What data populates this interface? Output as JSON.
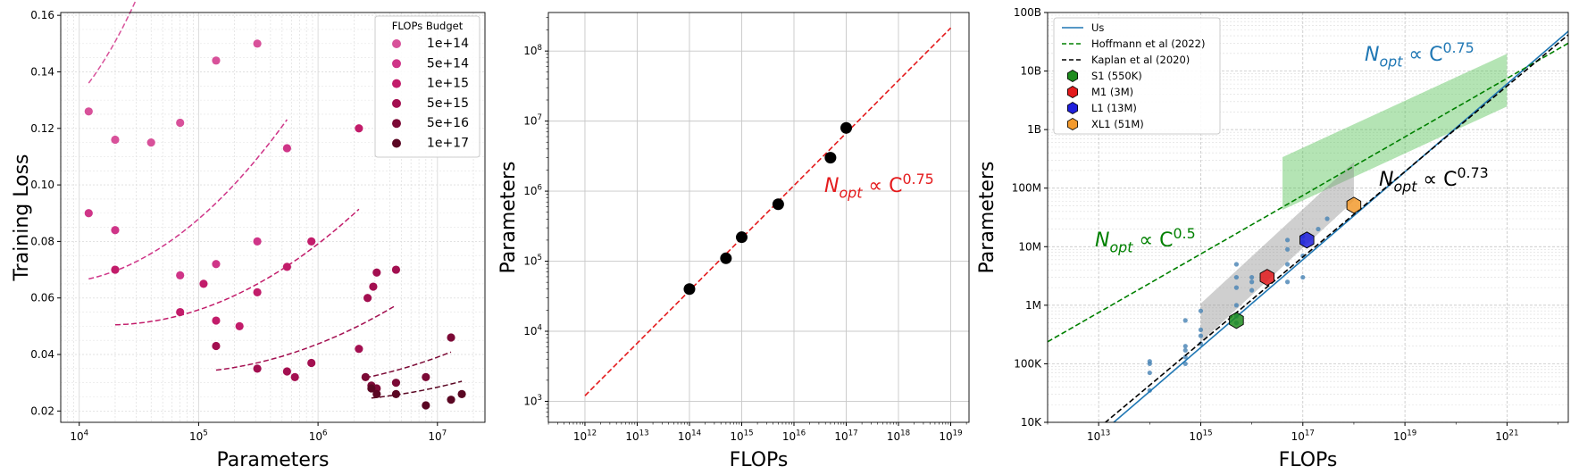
{
  "colors": {
    "budgets": [
      "#d8519a",
      "#cf3588",
      "#c21c6a",
      "#a30f50",
      "#7c0a36",
      "#5a0723"
    ],
    "red": "#e41a1c",
    "us": "#1f77b4",
    "hoffmann": "#008000",
    "kaplan": "#000000",
    "runs": "#4682b4"
  },
  "chart_data": [
    {
      "type": "scatter",
      "title": "",
      "xlabel": "Parameters",
      "ylabel": "Training Loss",
      "xscale": "log",
      "xlim": [
        7000,
        25000000
      ],
      "ylim": [
        0.016,
        0.161
      ],
      "xticks": [
        {
          "v": 10000,
          "label": "10",
          "sup": "4"
        },
        {
          "v": 100000,
          "label": "10",
          "sup": "5"
        },
        {
          "v": 1000000,
          "label": "10",
          "sup": "6"
        },
        {
          "v": 10000000,
          "label": "10",
          "sup": "7"
        }
      ],
      "yticks": [
        "0.02",
        "0.04",
        "0.06",
        "0.08",
        "0.10",
        "0.12",
        "0.14",
        "0.16"
      ],
      "grid": true,
      "legend": {
        "title": "FLOPs Budget",
        "placement": "top-right"
      },
      "series": [
        {
          "name": "1e+14",
          "points": [
            [
              12000,
              0.126
            ],
            [
              20000,
              0.116
            ],
            [
              40000,
              0.115
            ],
            [
              70000,
              0.122
            ],
            [
              140000,
              0.144
            ],
            [
              310000,
              0.15
            ]
          ],
          "fit_x": [
            12000,
            310000
          ],
          "fit_a": 0.118,
          "fit_b": 4.44,
          "fit_c": 0.0277
        },
        {
          "name": "5e+14",
          "points": [
            [
              12000,
              0.09
            ],
            [
              20000,
              0.084
            ],
            [
              70000,
              0.068
            ],
            [
              140000,
              0.072
            ],
            [
              310000,
              0.08
            ],
            [
              550000,
              0.113
            ]
          ],
          "fit_x": [
            12000,
            550000
          ],
          "fit_a": 0.0652,
          "fit_b": 1.47,
          "fit_c": 0.057
        },
        {
          "name": "1e+15",
          "points": [
            [
              20000,
              0.07
            ],
            [
              70000,
              0.055
            ],
            [
              110000,
              0.065
            ],
            [
              140000,
              0.052
            ],
            [
              220000,
              0.05
            ],
            [
              310000,
              0.062
            ],
            [
              550000,
              0.071
            ],
            [
              880000,
              0.08
            ],
            [
              2200000,
              0.12
            ]
          ],
          "fit_x": [
            20000,
            2200000
          ],
          "fit_a": 0.0505,
          "fit_b": 0.93,
          "fit_c": 0.176
        },
        {
          "name": "5e+15",
          "points": [
            [
              140000,
              0.043
            ],
            [
              310000,
              0.035
            ],
            [
              550000,
              0.034
            ],
            [
              640000,
              0.032
            ],
            [
              880000,
              0.037
            ],
            [
              2200000,
              0.042
            ],
            [
              2600000,
              0.06
            ],
            [
              2900000,
              0.064
            ],
            [
              3100000,
              0.069
            ],
            [
              4500000,
              0.07
            ]
          ],
          "fit_x": [
            140000,
            4500000
          ],
          "fit_a": 0.0335,
          "fit_b": 0.67,
          "fit_c": 0.58
        },
        {
          "name": "5e+16",
          "points": [
            [
              2500000,
              0.032
            ],
            [
              2800000,
              0.029
            ],
            [
              3100000,
              0.028
            ],
            [
              4500000,
              0.03
            ],
            [
              8000000,
              0.032
            ],
            [
              13000000,
              0.046
            ]
          ],
          "fit_x": [
            2500000,
            13000000
          ],
          "fit_a": 0.0283,
          "fit_b": 0.55,
          "fit_c": 4.0
        },
        {
          "name": "1e+17",
          "points": [
            [
              2800000,
              0.028
            ],
            [
              3100000,
              0.026
            ],
            [
              4500000,
              0.026
            ],
            [
              8000000,
              0.022
            ],
            [
              13000000,
              0.024
            ],
            [
              16000000,
              0.026
            ]
          ],
          "fit_x": [
            2800000,
            16000000
          ],
          "fit_a": 0.0235,
          "fit_b": 0.45,
          "fit_c": 9.0
        }
      ]
    },
    {
      "type": "scatter",
      "title": "",
      "xlabel": "FLOPs",
      "ylabel": "Parameters",
      "xscale": "log",
      "yscale": "log",
      "xlim_exp": [
        11.3,
        19.35
      ],
      "ylim_exp": [
        2.7,
        8.55
      ],
      "xticks": [
        {
          "label": "10",
          "sup": "12"
        },
        {
          "label": "10",
          "sup": "13"
        },
        {
          "label": "10",
          "sup": "14"
        },
        {
          "label": "10",
          "sup": "15"
        },
        {
          "label": "10",
          "sup": "16"
        },
        {
          "label": "10",
          "sup": "17"
        },
        {
          "label": "10",
          "sup": "18"
        },
        {
          "label": "10",
          "sup": "19"
        }
      ],
      "yticks": [
        {
          "label": "10",
          "sup": "3"
        },
        {
          "label": "10",
          "sup": "4"
        },
        {
          "label": "10",
          "sup": "5"
        },
        {
          "label": "10",
          "sup": "6"
        },
        {
          "label": "10",
          "sup": "7"
        },
        {
          "label": "10",
          "sup": "8"
        }
      ],
      "grid": true,
      "points": [
        [
          100000000000000.0,
          40000
        ],
        [
          500000000000000.0,
          110000
        ],
        [
          1000000000000000.0,
          220000
        ],
        [
          5000000000000000.0,
          650000
        ],
        [
          5e+16,
          3000000
        ],
        [
          1e+17,
          8000000
        ]
      ],
      "fit": {
        "exponent": 0.75,
        "x_range": [
          1000000000000.0,
          1e+19
        ],
        "y_at_1e12": 1200
      },
      "annotation": {
        "base": "N",
        "sub": "opt",
        "mid": " ∝ C",
        "sup": "0.75"
      }
    },
    {
      "type": "scatter",
      "title": "",
      "xlabel": "FLOPs",
      "ylabel": "Parameters",
      "xscale": "log",
      "yscale": "log",
      "xlim_exp": [
        12.0,
        22.2
      ],
      "ylim_exp": [
        4.0,
        11.0
      ],
      "xticks": [
        {
          "label": "10",
          "sup": "13"
        },
        {
          "label": "10",
          "sup": "15"
        },
        {
          "label": "10",
          "sup": "17"
        },
        {
          "label": "10",
          "sup": "19"
        },
        {
          "label": "10",
          "sup": "21"
        },
        {
          "label": "10",
          "sup": "2"
        }
      ],
      "yticks": [
        "10K",
        "100K",
        "1M",
        "10M",
        "100M",
        "1B",
        "10B",
        "100B"
      ],
      "grid": true,
      "legend": {
        "placement": "top-left",
        "lines": [
          {
            "name": "Us",
            "style": "solid",
            "color": "#1f77b4"
          },
          {
            "name": "Hoffmann et al (2022)",
            "style": "dashed",
            "color": "#008000"
          },
          {
            "name": "Kaplan et al (2020)",
            "style": "dashed",
            "color": "#000000"
          }
        ],
        "markers": [
          {
            "name": "S1 (550K)",
            "color": "#1e8c1e"
          },
          {
            "name": "M1 (3M)",
            "color": "#e31a1c"
          },
          {
            "name": "L1 (13M)",
            "color": "#1f1fdc"
          },
          {
            "name": "XL1 (51M)",
            "color": "#f29a2e"
          }
        ]
      },
      "models": [
        {
          "name": "S1",
          "flops": 5000000000000000.0,
          "params": 550000,
          "color": "#1e8c1e"
        },
        {
          "name": "M1",
          "flops": 2e+16,
          "params": 3000000,
          "color": "#e31a1c"
        },
        {
          "name": "L1",
          "flops": 1.2e+17,
          "params": 13000000,
          "color": "#1f1fdc"
        },
        {
          "name": "XL1",
          "flops": 1e+18,
          "params": 51000000,
          "color": "#f29a2e"
        }
      ],
      "runs": [
        [
          100000000000000.0,
          35000
        ],
        [
          100000000000000.0,
          70000
        ],
        [
          100000000000000.0,
          100000
        ],
        [
          100000000000000.0,
          110000
        ],
        [
          500000000000000.0,
          100000
        ],
        [
          500000000000000.0,
          130000
        ],
        [
          500000000000000.0,
          170000
        ],
        [
          500000000000000.0,
          200000
        ],
        [
          500000000000000.0,
          550000
        ],
        [
          1000000000000000.0,
          220000
        ],
        [
          1000000000000000.0,
          300000
        ],
        [
          1000000000000000.0,
          380000
        ],
        [
          1000000000000000.0,
          800000
        ],
        [
          5000000000000000.0,
          500000
        ],
        [
          5000000000000000.0,
          650000
        ],
        [
          5000000000000000.0,
          1000000
        ],
        [
          5000000000000000.0,
          2000000
        ],
        [
          5000000000000000.0,
          3000000
        ],
        [
          5000000000000000.0,
          5000000
        ],
        [
          1e+16,
          1800000
        ],
        [
          1e+16,
          2500000
        ],
        [
          1e+16,
          3000000
        ],
        [
          5e+16,
          2500000
        ],
        [
          5e+16,
          5000000
        ],
        [
          5e+16,
          9000000
        ],
        [
          5e+16,
          13000000
        ],
        [
          1e+17,
          3000000
        ],
        [
          1e+17,
          7000000
        ],
        [
          1e+17,
          12000000
        ],
        [
          1e+17,
          15000000
        ],
        [
          2e+17,
          20000000
        ],
        [
          3e+17,
          30000000
        ]
      ],
      "fits": [
        {
          "name": "Us",
          "exponent": 0.75,
          "anchor": [
            10000000000000.0,
            6000
          ],
          "range": [
            10000000000000.0,
            1.6e+22
          ]
        },
        {
          "name": "Hoffmann et al (2022)",
          "exponent": 0.5,
          "anchor": [
            10000000000000.0,
            750000
          ],
          "range": [
            1000000000000.0,
            1.6e+22
          ]
        },
        {
          "name": "Kaplan et al (2020)",
          "exponent": 0.73,
          "anchor": [
            10000000000000.0,
            8000
          ],
          "range": [
            10000000000000.0,
            1.6e+22
          ]
        }
      ],
      "bands": [
        {
          "name": "green",
          "from": [
            4e+16,
            120000000
          ],
          "to": [
            1e+21,
            7000000000
          ],
          "halfwidth_dex": 0.45
        },
        {
          "name": "gray",
          "from": [
            1000000000000000.0,
            500000
          ],
          "to": [
            1e+18,
            130000000
          ],
          "halfwidth_dex": 0.33
        }
      ],
      "annotations": [
        {
          "base": "N",
          "sub": "opt",
          "mid": " ∝ C",
          "sup": "0.75",
          "color": "#1f77b4"
        },
        {
          "base": "N",
          "sub": "opt",
          "mid": " ∝ C",
          "sup": "0.73",
          "color": "#000000"
        },
        {
          "base": "N",
          "sub": "opt",
          "mid": " ∝ C",
          "sup": "0.5",
          "color": "#008000"
        }
      ]
    }
  ]
}
